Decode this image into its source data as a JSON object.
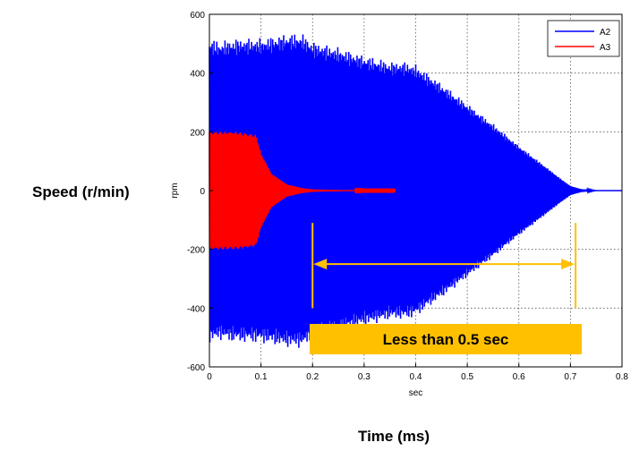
{
  "chart_data": {
    "type": "line",
    "outer_ylabel": "Speed (r/min)",
    "outer_xlabel": "Time (ms)",
    "inner_ylabel": "rpm",
    "inner_xlabel": "sec",
    "xlim": [
      0,
      0.8
    ],
    "ylim": [
      -600,
      600
    ],
    "x_ticks": [
      "0",
      "0.1",
      "0.2",
      "0.3",
      "0.4",
      "0.5",
      "0.6",
      "0.7",
      "0.8"
    ],
    "y_ticks": [
      "600",
      "400",
      "200",
      "0",
      "-200",
      "-400",
      "-600"
    ],
    "grid": true,
    "legend_position": "top-right",
    "series": [
      {
        "name": "A2",
        "color": "#0000ff",
        "kind": "oscillation-envelope",
        "x": [
          0,
          0.02,
          0.05,
          0.1,
          0.15,
          0.18,
          0.2,
          0.25,
          0.3,
          0.35,
          0.38,
          0.4,
          0.45,
          0.5,
          0.55,
          0.6,
          0.65,
          0.68,
          0.7,
          0.72,
          0.75,
          0.8
        ],
        "upper": [
          490,
          480,
          490,
          490,
          505,
          505,
          480,
          460,
          435,
          415,
          415,
          405,
          345,
          280,
          215,
          145,
          80,
          40,
          15,
          5,
          0,
          0
        ],
        "lower": [
          -490,
          -480,
          -490,
          -490,
          -505,
          -505,
          -480,
          -460,
          -435,
          -415,
          -415,
          -405,
          -345,
          -280,
          -215,
          -145,
          -80,
          -40,
          -15,
          -5,
          0,
          0
        ]
      },
      {
        "name": "A3",
        "color": "#ff0000",
        "kind": "oscillation-envelope",
        "x": [
          0,
          0.05,
          0.09,
          0.1,
          0.12,
          0.15,
          0.18,
          0.2,
          0.25,
          0.3,
          0.36
        ],
        "upper": [
          190,
          190,
          180,
          120,
          55,
          20,
          8,
          4,
          2,
          1,
          1
        ],
        "lower": [
          -190,
          -190,
          -180,
          -120,
          -55,
          -20,
          -8,
          -4,
          -2,
          -1,
          -1
        ]
      }
    ],
    "annotation": {
      "text": "Less than 0.5 sec",
      "x_start": 0.2,
      "x_end": 0.71,
      "y": -250,
      "color": "#ffc000",
      "box_fill": "#ffc000"
    }
  }
}
